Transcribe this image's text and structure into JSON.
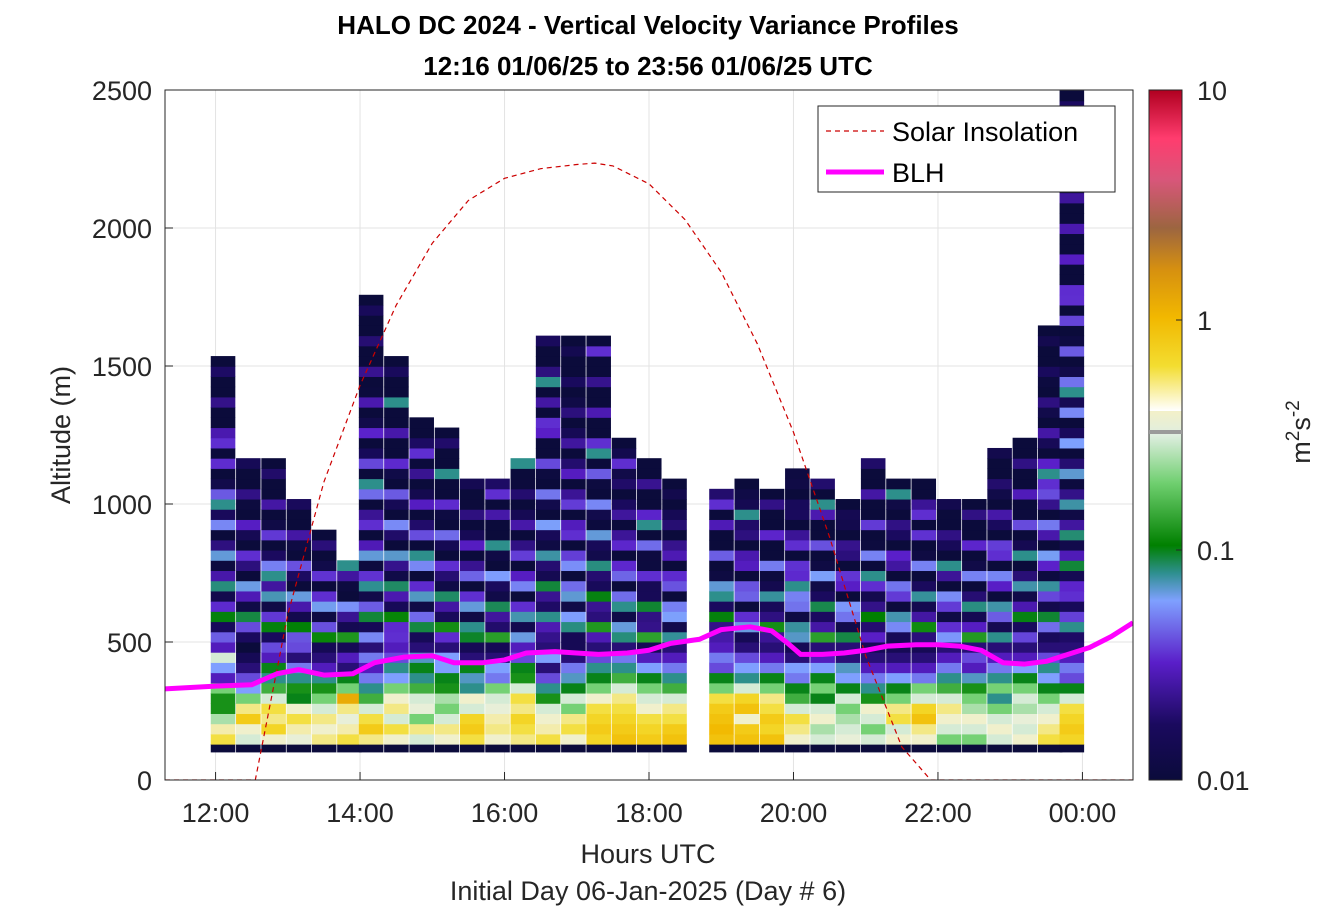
{
  "chart_data": {
    "type": "heatmap",
    "title": "HALO DC 2024 - Vertical Velocity Variance Profiles",
    "subtitle": "12:16 01/06/25 to 23:56 01/06/25  UTC",
    "xlabel": "Hours UTC",
    "xlabel2": "Initial Day 06-Jan-2025 (Day # 6)",
    "ylabel": "Altitude (m)",
    "colorbar_label_base": "m",
    "colorbar_label_sup1": "2",
    "colorbar_label_mid": "s",
    "colorbar_label_sup2": "-2",
    "xlim": [
      11.3,
      24.7
    ],
    "ylim": [
      0,
      2500
    ],
    "x_ticks": [
      12,
      14,
      16,
      18,
      20,
      22,
      24
    ],
    "x_tick_labels": [
      "12:00",
      "14:00",
      "16:00",
      "18:00",
      "20:00",
      "22:00",
      "00:00"
    ],
    "y_ticks": [
      0,
      500,
      1000,
      1500,
      2000,
      2500
    ],
    "y_tick_labels": [
      "0",
      "500",
      "1000",
      "1500",
      "2000",
      "2500"
    ],
    "color_scale": "log",
    "clim": [
      0.01,
      10
    ],
    "colorbar_ticks": [
      0.01,
      0.1,
      1,
      10
    ],
    "colorbar_tick_labels": [
      "0.01",
      "0.1",
      "1",
      "10"
    ],
    "grid": true,
    "legend": {
      "placement": "top-right",
      "entries": [
        {
          "name": "Solar Insolation",
          "style": "dashed",
          "color": "#cc0000"
        },
        {
          "name": "BLH",
          "style": "solid",
          "color": "#ff00ff"
        }
      ]
    },
    "solar_insolation": {
      "x": [
        11.3,
        12.55,
        13.0,
        13.5,
        14.0,
        14.5,
        15.0,
        15.5,
        16.0,
        16.5,
        17.0,
        17.25,
        17.5,
        18.0,
        18.5,
        19.0,
        19.5,
        20.0,
        20.5,
        21.0,
        21.5,
        21.9,
        24.7
      ],
      "y": [
        0,
        0,
        600,
        1080,
        1430,
        1720,
        1945,
        2100,
        2180,
        2215,
        2230,
        2235,
        2225,
        2160,
        2030,
        1840,
        1580,
        1260,
        880,
        450,
        120,
        0,
        0
      ]
    },
    "blh": {
      "x": [
        11.3,
        12.0,
        12.5,
        12.85,
        13.15,
        13.5,
        13.9,
        14.2,
        14.6,
        15.0,
        15.3,
        15.7,
        16.0,
        16.3,
        16.7,
        17.0,
        17.3,
        17.7,
        18.0,
        18.3,
        18.7,
        19.0,
        19.4,
        19.7,
        19.9,
        20.1,
        20.4,
        20.7,
        21.0,
        21.3,
        21.7,
        22.0,
        22.3,
        22.6,
        22.9,
        23.2,
        23.5,
        23.8,
        24.1,
        24.4,
        24.7
      ],
      "y": [
        330,
        340,
        345,
        385,
        400,
        380,
        385,
        425,
        445,
        450,
        425,
        425,
        435,
        460,
        465,
        460,
        455,
        460,
        470,
        495,
        510,
        545,
        555,
        540,
        500,
        455,
        455,
        460,
        470,
        485,
        490,
        490,
        485,
        470,
        425,
        420,
        430,
        455,
        480,
        520,
        570
      ]
    },
    "cells": {
      "bin_hours": 0.333,
      "bin_height_m": 37,
      "columns": [
        {
          "x": 12.1,
          "y_top": 1520,
          "levels": [
            0.03,
            0.3,
            0.06,
            0.03,
            0.2,
            0.12,
            0.12,
            0.25,
            0.45,
            0.6
          ]
        },
        {
          "x": 12.45,
          "y_top": 1150,
          "levels": [
            0.01,
            0.015,
            0.02,
            0.04,
            0.06,
            0.2,
            0.5,
            0.8,
            0.4,
            0.3
          ]
        },
        {
          "x": 12.8,
          "y_top": 1150,
          "levels": [
            0.04,
            0.03,
            0.1,
            0.08,
            0.15,
            0.3,
            0.6,
            0.5,
            0.7,
            0.4
          ]
        },
        {
          "x": 13.15,
          "y_top": 1000,
          "levels": [
            0.04,
            0.02,
            0.05,
            0.08,
            0.12,
            0.1,
            0.4,
            0.6,
            0.45,
            0.35
          ]
        },
        {
          "x": 13.5,
          "y_top": 900,
          "levels": [
            0.015,
            0.02,
            0.03,
            0.08,
            0.12,
            0.2,
            0.3,
            0.5,
            0.4,
            0.5
          ]
        },
        {
          "x": 13.85,
          "y_top": 800,
          "levels": [
            0.015,
            0.03,
            0.02,
            0.1,
            0.2,
            1.2,
            0.5,
            0.35,
            0.45,
            0.6
          ]
        },
        {
          "x": 14.15,
          "y_top": 1770,
          "levels": [
            0.02,
            0.05,
            0.03,
            0.05,
            0.08,
            0.15,
            0.3,
            0.6,
            0.8,
            0.5
          ]
        },
        {
          "x": 14.5,
          "y_top": 1520,
          "levels": [
            0.03,
            0.04,
            0.08,
            0.06,
            0.2,
            0.4,
            0.5,
            0.3,
            0.6,
            0.4
          ]
        },
        {
          "x": 14.85,
          "y_top": 1300,
          "levels": [
            0.02,
            0.07,
            0.1,
            0.08,
            0.15,
            0.3,
            0.35,
            0.2,
            0.5,
            0.3
          ]
        },
        {
          "x": 15.2,
          "y_top": 1280,
          "levels": [
            0.02,
            0.06,
            0.06,
            0.1,
            0.12,
            0.25,
            0.2,
            0.3,
            0.5,
            0.4
          ]
        },
        {
          "x": 15.55,
          "y_top": 1100,
          "levels": [
            0.015,
            0.02,
            0.1,
            0.07,
            0.08,
            0.4,
            0.3,
            0.7,
            0.8,
            0.6
          ]
        },
        {
          "x": 15.9,
          "y_top": 1100,
          "levels": [
            0.015,
            0.02,
            0.06,
            0.05,
            0.2,
            0.3,
            0.35,
            0.45,
            0.5,
            0.4
          ]
        },
        {
          "x": 16.25,
          "y_top": 1150,
          "levels": [
            0.03,
            0.04,
            0.1,
            0.12,
            0.3,
            0.6,
            0.5,
            0.7,
            0.6,
            0.5
          ]
        },
        {
          "x": 16.6,
          "y_top": 1620,
          "levels": [
            0.02,
            0.06,
            0.02,
            0.04,
            0.08,
            0.12,
            0.3,
            0.4,
            0.45,
            0.6
          ]
        },
        {
          "x": 16.95,
          "y_top": 1620,
          "levels": [
            0.015,
            0.02,
            0.05,
            0.07,
            0.1,
            0.3,
            0.2,
            0.5,
            0.6,
            0.4
          ]
        },
        {
          "x": 17.3,
          "y_top": 1600,
          "levels": [
            0.02,
            0.04,
            0.08,
            0.1,
            0.2,
            0.4,
            0.6,
            0.7,
            0.8,
            0.7
          ]
        },
        {
          "x": 17.65,
          "y_top": 1240,
          "levels": [
            0.02,
            0.05,
            0.08,
            0.15,
            0.3,
            0.5,
            0.6,
            0.7,
            0.8,
            0.9
          ]
        },
        {
          "x": 18.0,
          "y_top": 1150,
          "levels": [
            0.015,
            0.03,
            0.06,
            0.1,
            0.2,
            0.3,
            0.4,
            0.6,
            0.7,
            0.8
          ]
        },
        {
          "x": 18.35,
          "y_top": 1080,
          "levels": [
            0.02,
            0.03,
            0.05,
            0.08,
            0.15,
            0.3,
            0.5,
            0.6,
            0.8,
            0.9
          ]
        },
        {
          "x": 19.0,
          "y_top": 1070,
          "levels": [
            0.03,
            0.05,
            0.04,
            0.1,
            0.2,
            0.6,
            0.8,
            0.9,
            1.0,
            0.9
          ]
        },
        {
          "x": 19.35,
          "y_top": 1080,
          "levels": [
            0.02,
            0.04,
            0.06,
            0.08,
            0.3,
            0.7,
            0.9,
            0.4,
            0.8,
            0.9
          ]
        },
        {
          "x": 19.7,
          "y_top": 1070,
          "levels": [
            0.02,
            0.03,
            0.05,
            0.1,
            0.2,
            0.5,
            0.6,
            0.8,
            0.7,
            0.9
          ]
        },
        {
          "x": 20.05,
          "y_top": 1140,
          "levels": [
            0.015,
            0.02,
            0.06,
            0.05,
            0.1,
            0.15,
            0.3,
            0.6,
            0.5,
            0.4
          ]
        },
        {
          "x": 20.4,
          "y_top": 1080,
          "levels": [
            0.02,
            0.03,
            0.06,
            0.1,
            0.2,
            0.1,
            0.3,
            0.4,
            0.25,
            0.3
          ]
        },
        {
          "x": 20.75,
          "y_top": 1000,
          "levels": [
            0.02,
            0.02,
            0.07,
            0.06,
            0.1,
            0.3,
            0.2,
            0.25,
            0.3,
            0.35
          ]
        },
        {
          "x": 21.1,
          "y_top": 1150,
          "levels": [
            0.015,
            0.02,
            0.03,
            0.05,
            0.08,
            0.12,
            0.4,
            0.3,
            0.2,
            0.3
          ]
        },
        {
          "x": 21.45,
          "y_top": 1080,
          "levels": [
            0.015,
            0.02,
            0.03,
            0.06,
            0.1,
            0.2,
            0.5,
            0.6,
            0.3,
            0.4
          ]
        },
        {
          "x": 21.8,
          "y_top": 1080,
          "levels": [
            0.015,
            0.02,
            0.03,
            0.05,
            0.2,
            0.3,
            0.7,
            0.9,
            0.5,
            0.4
          ]
        },
        {
          "x": 22.15,
          "y_top": 1020,
          "levels": [
            0.02,
            0.03,
            0.05,
            0.08,
            0.15,
            0.3,
            0.5,
            0.4,
            0.3,
            0.2
          ]
        },
        {
          "x": 22.5,
          "y_top": 1020,
          "levels": [
            0.02,
            0.04,
            0.03,
            0.07,
            0.12,
            0.2,
            0.25,
            0.4,
            0.3,
            0.2
          ]
        },
        {
          "x": 22.85,
          "y_top": 1200,
          "levels": [
            0.02,
            0.03,
            0.05,
            0.08,
            0.2,
            0.08,
            0.2,
            0.3,
            0.4,
            0.3
          ]
        },
        {
          "x": 23.2,
          "y_top": 1250,
          "levels": [
            0.02,
            0.03,
            0.06,
            0.1,
            0.2,
            0.3,
            0.25,
            0.35,
            0.3,
            0.4
          ]
        },
        {
          "x": 23.55,
          "y_top": 1650,
          "levels": [
            0.02,
            0.04,
            0.08,
            0.06,
            0.1,
            0.2,
            0.3,
            0.4,
            0.5,
            0.6
          ]
        },
        {
          "x": 23.85,
          "y_top": 2480,
          "levels": [
            0.02,
            0.03,
            0.05,
            0.04,
            0.1,
            0.3,
            0.6,
            0.7,
            0.8,
            0.7
          ]
        }
      ]
    }
  }
}
